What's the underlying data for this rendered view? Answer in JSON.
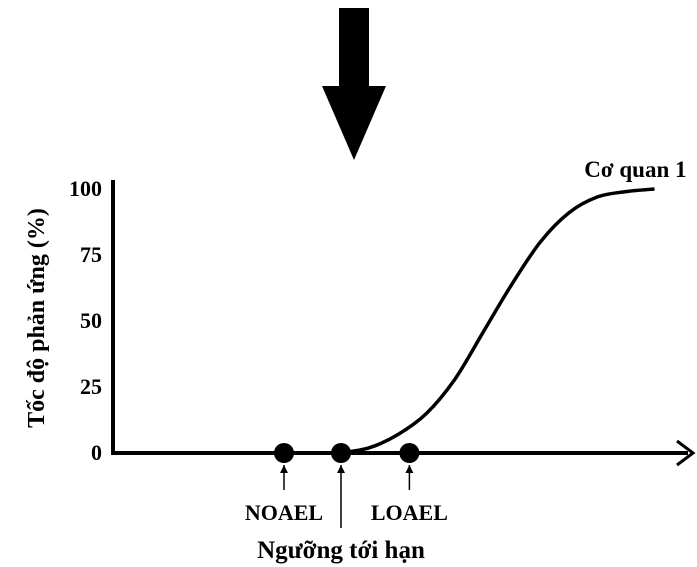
{
  "chart_data": {
    "type": "line",
    "ylabel": "Tốc độ phản ứng (%)",
    "xlabel": "",
    "yticks": [
      0,
      25,
      50,
      75,
      100
    ],
    "ylim": [
      0,
      100
    ],
    "xlim": [
      0,
      10
    ],
    "series": [
      {
        "name": "Cơ quan 1",
        "x": [
          4.0,
          4.5,
          5.0,
          5.5,
          6.0,
          6.5,
          7.0,
          7.5,
          8.0,
          8.5,
          9.0,
          9.5
        ],
        "y": [
          0,
          2,
          7,
          15,
          28,
          46,
          64,
          80,
          91,
          97,
          99,
          100
        ]
      }
    ],
    "points": [
      {
        "label": "NOAEL",
        "x": 3.0,
        "y": 0
      },
      {
        "label": "Ngưỡng tới hạn",
        "x": 4.0,
        "y": 0
      },
      {
        "label": "LOAEL",
        "x": 5.2,
        "y": 0
      }
    ]
  },
  "colors": {
    "ink": "#000000",
    "background": "#ffffff"
  },
  "icons": {
    "top_arrow": "down-arrow-icon"
  }
}
